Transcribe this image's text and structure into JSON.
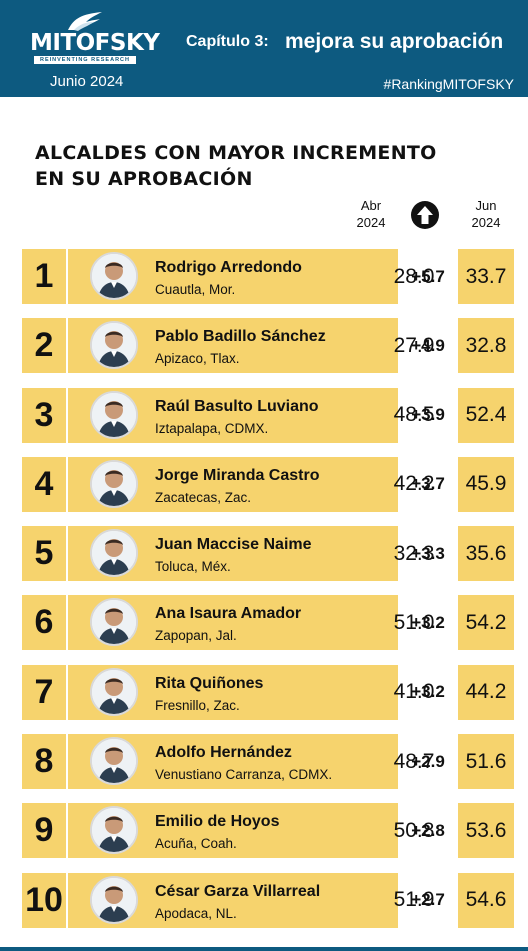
{
  "header": {
    "logo_text": "MITOFSKY",
    "logo_subtitle": "REINVENTING RESEARCH",
    "date": "Junio  2024",
    "chapter_number": "Capítulo 3:",
    "chapter_title": "mejora su aprobación",
    "hashtag": "#RankingMITOFSKY"
  },
  "title_line1": "ALCALDES CON MAYOR INCREMENTO",
  "title_line2": "EN SU APROBACIÓN",
  "columns": {
    "abr_month": "Abr",
    "abr_year": "2024",
    "jun_month": "Jun",
    "jun_year": "2024",
    "change_icon": "up-arrow-circle-icon"
  },
  "colors": {
    "header_bg": "#0d5a80",
    "row_bg": "#f6d36d"
  },
  "rows": [
    {
      "rank": "1",
      "name": "Rodrigo Arredondo",
      "location": "Cuautla, Mor.",
      "abr": "28.0",
      "delta": "+5.7",
      "jun": "33.7"
    },
    {
      "rank": "2",
      "name": "Pablo Badillo Sánchez",
      "location": "Apizaco, Tlax.",
      "abr": "27.9",
      "delta": "+4.9",
      "jun": "32.8"
    },
    {
      "rank": "3",
      "name": "Raúl Basulto Luviano",
      "location": "Iztapalapa, CDMX.",
      "abr": "48.5",
      "delta": "+3.9",
      "jun": "52.4"
    },
    {
      "rank": "4",
      "name": "Jorge Miranda Castro",
      "location": "Zacatecas, Zac.",
      "abr": "42.2",
      "delta": "+3.7",
      "jun": "45.9"
    },
    {
      "rank": "5",
      "name": "Juan Maccise Naime",
      "location": "Toluca, Méx.",
      "abr": "32.3",
      "delta": "+3.3",
      "jun": "35.6"
    },
    {
      "rank": "6",
      "name": "Ana Isaura Amador",
      "location": " Zapopan, Jal.",
      "abr": "51.0",
      "delta": "+3.2",
      "jun": "54.2"
    },
    {
      "rank": "7",
      "name": "Rita Quiñones",
      "location": "Fresnillo, Zac.",
      "abr": "41.0",
      "delta": "+3.2",
      "jun": "44.2"
    },
    {
      "rank": "8",
      "name": "Adolfo Hernández",
      "location": "Venustiano Carranza, CDMX.",
      "abr": "48.7",
      "delta": "+2.9",
      "jun": "51.6"
    },
    {
      "rank": "9",
      "name": "Emilio de Hoyos",
      "location": "Acuña, Coah.",
      "abr": "50.8",
      "delta": "+2.8",
      "jun": "53.6"
    },
    {
      "rank": "10",
      "name": "César Garza Villarreal",
      "location": "Apodaca, NL.",
      "abr": "51.9",
      "delta": "+2.7",
      "jun": "54.6"
    }
  ]
}
